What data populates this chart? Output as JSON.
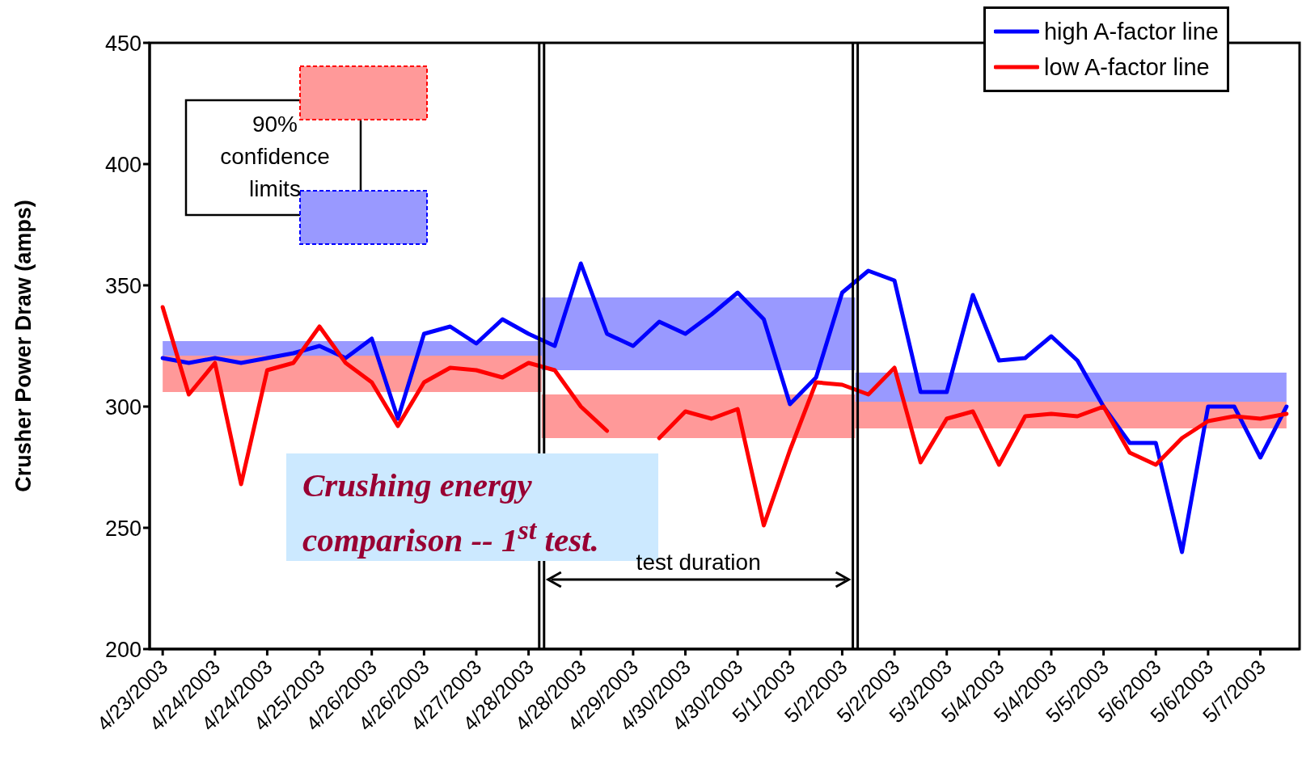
{
  "chart_data": {
    "type": "line",
    "categories": [
      "4/23/2003",
      null,
      "4/24/2003",
      null,
      "4/24/2003",
      null,
      "4/25/2003",
      null,
      "4/26/2003",
      null,
      "4/26/2003",
      null,
      "4/27/2003",
      null,
      "4/28/2003",
      null,
      "4/28/2003",
      null,
      "4/29/2003",
      null,
      "4/30/2003",
      null,
      "4/30/2003",
      null,
      "5/1/2003",
      null,
      "5/2/2003",
      null,
      "5/2/2003",
      null,
      "5/3/2003",
      null,
      "5/4/2003",
      null,
      "5/4/2003",
      null,
      "5/5/2003",
      null,
      "5/6/2003",
      null,
      "5/6/2003",
      null,
      "5/7/2003",
      null
    ],
    "ylabel": "Crusher Power Draw (amps)",
    "ylim": [
      200,
      450
    ],
    "yticks": [
      200,
      250,
      300,
      350,
      400,
      450
    ],
    "series": [
      {
        "name": "high A-factor line",
        "color": "#0000ff",
        "values": [
          320,
          318,
          320,
          318,
          320,
          322,
          325,
          320,
          328,
          295,
          330,
          333,
          326,
          336,
          330,
          325,
          359,
          330,
          325,
          335,
          330,
          338,
          347,
          336,
          301,
          312,
          347,
          356,
          352,
          306,
          306,
          346,
          319,
          320,
          329,
          319,
          300,
          285,
          285,
          240,
          300,
          300,
          279,
          300
        ],
        "lower": [
          321,
          321,
          321,
          321,
          321,
          321,
          321,
          321,
          321,
          321,
          321,
          321,
          321,
          321,
          321,
          315,
          315,
          315,
          315,
          315,
          315,
          315,
          315,
          315,
          315,
          315,
          315,
          302,
          302,
          302,
          302,
          302,
          302,
          302,
          302,
          302,
          302,
          302,
          302,
          302,
          302,
          302,
          302,
          302
        ],
        "upper": [
          327,
          327,
          327,
          327,
          327,
          327,
          327,
          327,
          327,
          327,
          327,
          327,
          327,
          327,
          327,
          345,
          345,
          345,
          345,
          345,
          345,
          345,
          345,
          345,
          345,
          345,
          345,
          314,
          314,
          314,
          314,
          314,
          314,
          314,
          314,
          314,
          314,
          314,
          314,
          314,
          314,
          314,
          314,
          314
        ]
      },
      {
        "name": "low A-factor line",
        "color": "#ff0000",
        "values": [
          341,
          305,
          318,
          268,
          315,
          318,
          333,
          318,
          310,
          292,
          310,
          316,
          315,
          312,
          318,
          315,
          300,
          290,
          null,
          287,
          298,
          295,
          299,
          251,
          282,
          310,
          309,
          305,
          316,
          277,
          295,
          298,
          276,
          296,
          297,
          296,
          300,
          281,
          276,
          287,
          294,
          296,
          295,
          297
        ],
        "lower": [
          306,
          306,
          306,
          306,
          306,
          306,
          306,
          306,
          306,
          306,
          306,
          306,
          306,
          306,
          306,
          287,
          287,
          287,
          287,
          287,
          287,
          287,
          287,
          287,
          287,
          287,
          287,
          291,
          291,
          291,
          291,
          291,
          291,
          291,
          291,
          291,
          291,
          291,
          291,
          291,
          291,
          291,
          291,
          291
        ],
        "upper": [
          321,
          321,
          321,
          321,
          321,
          321,
          321,
          321,
          321,
          321,
          321,
          321,
          321,
          321,
          321,
          305,
          305,
          305,
          305,
          305,
          305,
          305,
          305,
          305,
          305,
          305,
          305,
          302,
          302,
          302,
          302,
          302,
          302,
          302,
          302,
          302,
          302,
          302,
          302,
          302,
          302,
          302,
          302,
          302
        ]
      }
    ],
    "legend": "top right",
    "grid": false,
    "marker": "none",
    "line_style": "solid",
    "annotations": [
      "90% confidence limits",
      "Crushing energy comparison -- 1$^{st}$ test.",
      "test duration"
    ]
  }
}
